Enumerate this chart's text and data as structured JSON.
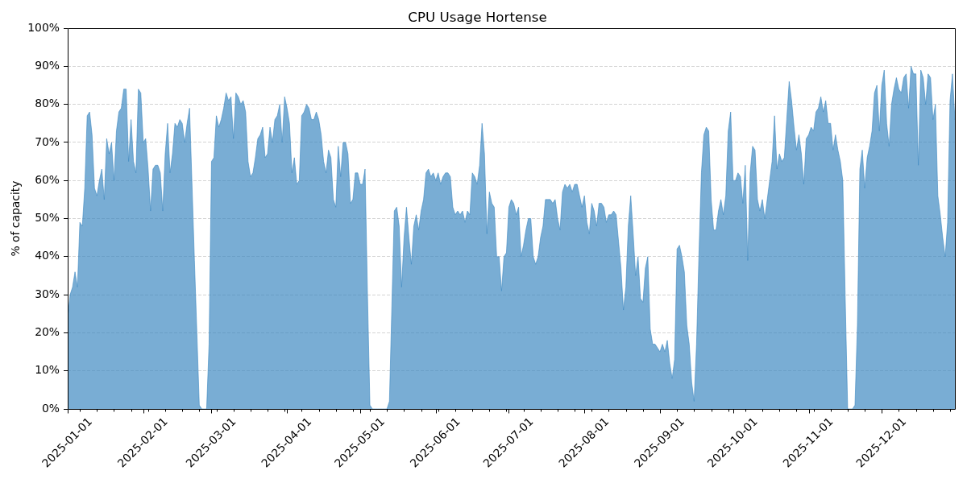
{
  "chart_data": {
    "type": "area",
    "title": "CPU Usage Hortense",
    "ylabel": "% of capacity",
    "color": "#3a86bf",
    "grid": "y",
    "xlim": [
      "2025-01-01",
      "2025-12-31"
    ],
    "xticks": [
      "2025-01-01",
      {
        "value": "2025-01-06",
        "label": null
      },
      {
        "value": "2025-01-13",
        "label": null
      },
      {
        "value": "2025-01-20",
        "label": null
      },
      {
        "value": "2025-01-27",
        "label": null
      },
      "2025-02-01",
      {
        "value": "2025-02-03",
        "label": null
      },
      {
        "value": "2025-02-10",
        "label": null
      },
      {
        "value": "2025-02-17",
        "label": null
      },
      {
        "value": "2025-02-24",
        "label": null
      },
      "2025-03-01",
      {
        "value": "2025-03-03",
        "label": null
      },
      {
        "value": "2025-03-10",
        "label": null
      },
      {
        "value": "2025-03-17",
        "label": null
      },
      {
        "value": "2025-03-24",
        "label": null
      },
      {
        "value": "2025-03-31",
        "label": null
      },
      "2025-04-01",
      {
        "value": "2025-04-07",
        "label": null
      },
      {
        "value": "2025-04-14",
        "label": null
      },
      {
        "value": "2025-04-21",
        "label": null
      },
      {
        "value": "2025-04-28",
        "label": null
      },
      "2025-05-01",
      {
        "value": "2025-05-05",
        "label": null
      },
      {
        "value": "2025-05-12",
        "label": null
      },
      {
        "value": "2025-05-19",
        "label": null
      },
      {
        "value": "2025-05-26",
        "label": null
      },
      "2025-06-01",
      {
        "value": "2025-06-02",
        "label": null
      },
      {
        "value": "2025-06-09",
        "label": null
      },
      {
        "value": "2025-06-16",
        "label": null
      },
      {
        "value": "2025-06-23",
        "label": null
      },
      {
        "value": "2025-06-30",
        "label": null
      },
      "2025-07-01",
      {
        "value": "2025-07-07",
        "label": null
      },
      {
        "value": "2025-07-14",
        "label": null
      },
      {
        "value": "2025-07-21",
        "label": null
      },
      {
        "value": "2025-07-28",
        "label": null
      },
      "2025-08-01",
      {
        "value": "2025-08-04",
        "label": null
      },
      {
        "value": "2025-08-11",
        "label": null
      },
      {
        "value": "2025-08-18",
        "label": null
      },
      {
        "value": "2025-08-25",
        "label": null
      },
      "2025-09-01",
      {
        "value": "2025-09-08",
        "label": null
      },
      {
        "value": "2025-09-15",
        "label": null
      },
      {
        "value": "2025-09-22",
        "label": null
      },
      {
        "value": "2025-09-29",
        "label": null
      },
      "2025-10-01",
      {
        "value": "2025-10-06",
        "label": null
      },
      {
        "value": "2025-10-13",
        "label": null
      },
      {
        "value": "2025-10-20",
        "label": null
      },
      {
        "value": "2025-10-27",
        "label": null
      },
      "2025-11-01",
      {
        "value": "2025-11-03",
        "label": null
      },
      {
        "value": "2025-11-10",
        "label": null
      },
      {
        "value": "2025-11-17",
        "label": null
      },
      {
        "value": "2025-11-24",
        "label": null
      },
      "2025-12-01",
      {
        "value": "2025-12-08",
        "label": null
      },
      {
        "value": "2025-12-15",
        "label": null
      },
      {
        "value": "2025-12-22",
        "label": null
      },
      {
        "value": "2025-12-29",
        "label": null
      }
    ],
    "ylim": [
      0,
      100
    ],
    "yticks": [
      {
        "value": 0,
        "label": "0%"
      },
      {
        "value": 10,
        "label": "10%"
      },
      {
        "value": 20,
        "label": "20%"
      },
      {
        "value": 30,
        "label": "30%"
      },
      {
        "value": 40,
        "label": "40%"
      },
      {
        "value": 50,
        "label": "50%"
      },
      {
        "value": 60,
        "label": "60%"
      },
      {
        "value": 70,
        "label": "70%"
      },
      {
        "value": 80,
        "label": "80%"
      },
      {
        "value": 90,
        "label": "90%"
      },
      {
        "value": 100,
        "label": "100%"
      }
    ],
    "x": [
      "2025-01-01",
      "2025-01-02",
      "2025-01-03",
      "2025-01-04",
      "2025-01-05",
      "2025-01-06",
      "2025-01-07",
      "2025-01-08",
      "2025-01-09",
      "2025-01-10",
      "2025-01-11",
      "2025-01-12",
      "2025-01-13",
      "2025-01-14",
      "2025-01-15",
      "2025-01-16",
      "2025-01-17",
      "2025-01-18",
      "2025-01-19",
      "2025-01-20",
      "2025-01-21",
      "2025-01-22",
      "2025-01-23",
      "2025-01-24",
      "2025-01-25",
      "2025-01-26",
      "2025-01-27",
      "2025-01-28",
      "2025-01-29",
      "2025-01-30",
      "2025-01-31",
      "2025-02-01",
      "2025-02-02",
      "2025-02-03",
      "2025-02-04",
      "2025-02-05",
      "2025-02-06",
      "2025-02-07",
      "2025-02-08",
      "2025-02-09",
      "2025-02-10",
      "2025-02-11",
      "2025-02-12",
      "2025-02-13",
      "2025-02-14",
      "2025-02-15",
      "2025-02-16",
      "2025-02-17",
      "2025-02-18",
      "2025-02-19",
      "2025-02-20",
      "2025-02-21",
      "2025-02-22",
      "2025-02-23",
      "2025-02-24",
      "2025-02-25",
      "2025-02-26",
      "2025-02-27",
      "2025-02-28",
      "2025-03-01",
      "2025-03-02",
      "2025-03-03",
      "2025-03-04",
      "2025-03-05",
      "2025-03-06",
      "2025-03-07",
      "2025-03-08",
      "2025-03-09",
      "2025-03-10",
      "2025-03-11",
      "2025-03-12",
      "2025-03-13",
      "2025-03-14",
      "2025-03-15",
      "2025-03-16",
      "2025-03-17",
      "2025-03-18",
      "2025-03-19",
      "2025-03-20",
      "2025-03-21",
      "2025-03-22",
      "2025-03-23",
      "2025-03-24",
      "2025-03-25",
      "2025-03-26",
      "2025-03-27",
      "2025-03-28",
      "2025-03-29",
      "2025-03-30",
      "2025-03-31",
      "2025-04-01",
      "2025-04-02",
      "2025-04-03",
      "2025-04-04",
      "2025-04-05",
      "2025-04-06",
      "2025-04-07",
      "2025-04-08",
      "2025-04-09",
      "2025-04-10",
      "2025-04-11",
      "2025-04-12",
      "2025-04-13",
      "2025-04-14",
      "2025-04-15",
      "2025-04-16",
      "2025-04-17",
      "2025-04-18",
      "2025-04-19",
      "2025-04-20",
      "2025-04-21",
      "2025-04-22",
      "2025-04-23",
      "2025-04-24",
      "2025-04-25",
      "2025-04-26",
      "2025-04-27",
      "2025-04-28",
      "2025-04-29",
      "2025-04-30",
      "2025-05-01",
      "2025-05-02",
      "2025-05-03",
      "2025-05-04",
      "2025-05-05",
      "2025-05-06",
      "2025-05-07",
      "2025-05-08",
      "2025-05-09",
      "2025-05-10",
      "2025-05-11",
      "2025-05-12",
      "2025-05-13",
      "2025-05-14",
      "2025-05-15",
      "2025-05-16",
      "2025-05-17",
      "2025-05-18",
      "2025-05-19",
      "2025-05-20",
      "2025-05-21",
      "2025-05-22",
      "2025-05-23",
      "2025-05-24",
      "2025-05-25",
      "2025-05-26",
      "2025-05-27",
      "2025-05-28",
      "2025-05-29",
      "2025-05-30",
      "2025-05-31",
      "2025-06-01",
      "2025-06-02",
      "2025-06-03",
      "2025-06-04",
      "2025-06-05",
      "2025-06-06",
      "2025-06-07",
      "2025-06-08",
      "2025-06-09",
      "2025-06-10",
      "2025-06-11",
      "2025-06-12",
      "2025-06-13",
      "2025-06-14",
      "2025-06-15",
      "2025-06-16",
      "2025-06-17",
      "2025-06-18",
      "2025-06-19",
      "2025-06-20",
      "2025-06-21",
      "2025-06-22",
      "2025-06-23",
      "2025-06-24",
      "2025-06-25",
      "2025-06-26",
      "2025-06-27",
      "2025-06-28",
      "2025-06-29",
      "2025-06-30",
      "2025-07-01",
      "2025-07-02",
      "2025-07-03",
      "2025-07-04",
      "2025-07-05",
      "2025-07-06",
      "2025-07-07",
      "2025-07-08",
      "2025-07-09",
      "2025-07-10",
      "2025-07-11",
      "2025-07-12",
      "2025-07-13",
      "2025-07-14",
      "2025-07-15",
      "2025-07-16",
      "2025-07-17",
      "2025-07-18",
      "2025-07-19",
      "2025-07-20",
      "2025-07-21",
      "2025-07-22",
      "2025-07-23",
      "2025-07-24",
      "2025-07-25",
      "2025-07-26",
      "2025-07-27",
      "2025-07-28",
      "2025-07-29",
      "2025-07-30",
      "2025-07-31",
      "2025-08-01",
      "2025-08-02",
      "2025-08-03",
      "2025-08-04",
      "2025-08-05",
      "2025-08-06",
      "2025-08-07",
      "2025-08-08",
      "2025-08-09",
      "2025-08-10",
      "2025-08-11",
      "2025-08-12",
      "2025-08-13",
      "2025-08-14",
      "2025-08-15",
      "2025-08-16",
      "2025-08-17",
      "2025-08-18",
      "2025-08-19",
      "2025-08-20",
      "2025-08-21",
      "2025-08-22",
      "2025-08-23",
      "2025-08-24",
      "2025-08-25",
      "2025-08-26",
      "2025-08-27",
      "2025-08-28",
      "2025-08-29",
      "2025-08-30",
      "2025-08-31",
      "2025-09-01",
      "2025-09-02",
      "2025-09-03",
      "2025-09-04",
      "2025-09-05",
      "2025-09-06",
      "2025-09-07",
      "2025-09-08",
      "2025-09-09",
      "2025-09-10",
      "2025-09-11",
      "2025-09-12",
      "2025-09-13",
      "2025-09-14",
      "2025-09-15",
      "2025-09-16",
      "2025-09-17",
      "2025-09-18",
      "2025-09-19",
      "2025-09-20",
      "2025-09-21",
      "2025-09-22",
      "2025-09-23",
      "2025-09-24",
      "2025-09-25",
      "2025-09-26",
      "2025-09-27",
      "2025-09-28",
      "2025-09-29",
      "2025-09-30",
      "2025-10-01",
      "2025-10-02",
      "2025-10-03",
      "2025-10-04",
      "2025-10-05",
      "2025-10-06",
      "2025-10-07",
      "2025-10-08",
      "2025-10-09",
      "2025-10-10",
      "2025-10-11",
      "2025-10-12",
      "2025-10-13",
      "2025-10-14",
      "2025-10-15",
      "2025-10-16",
      "2025-10-17",
      "2025-10-18",
      "2025-10-19",
      "2025-10-20",
      "2025-10-21",
      "2025-10-22",
      "2025-10-23",
      "2025-10-24",
      "2025-10-25",
      "2025-10-26",
      "2025-10-27",
      "2025-10-28",
      "2025-10-29",
      "2025-10-30",
      "2025-10-31",
      "2025-11-01",
      "2025-11-02",
      "2025-11-03",
      "2025-11-04",
      "2025-11-05",
      "2025-11-06",
      "2025-11-07",
      "2025-11-08",
      "2025-11-09",
      "2025-11-10",
      "2025-11-11",
      "2025-11-12",
      "2025-11-13",
      "2025-11-14",
      "2025-11-15",
      "2025-11-16",
      "2025-11-17",
      "2025-11-18",
      "2025-11-19",
      "2025-11-20",
      "2025-11-21",
      "2025-11-22",
      "2025-11-23",
      "2025-11-24",
      "2025-11-25",
      "2025-11-26",
      "2025-11-27",
      "2025-11-28",
      "2025-11-29",
      "2025-11-30",
      "2025-12-01",
      "2025-12-02",
      "2025-12-03",
      "2025-12-04",
      "2025-12-05",
      "2025-12-06",
      "2025-12-07",
      "2025-12-08",
      "2025-12-09",
      "2025-12-10",
      "2025-12-11",
      "2025-12-12",
      "2025-12-13",
      "2025-12-14",
      "2025-12-15",
      "2025-12-16",
      "2025-12-17",
      "2025-12-18",
      "2025-12-19",
      "2025-12-20",
      "2025-12-21",
      "2025-12-22",
      "2025-12-23",
      "2025-12-24",
      "2025-12-25",
      "2025-12-26",
      "2025-12-27",
      "2025-12-28",
      "2025-12-29",
      "2025-12-30",
      "2025-12-31"
    ],
    "values": [
      24,
      30,
      32,
      36,
      32,
      49,
      48,
      58,
      77,
      78,
      72,
      58,
      56,
      60,
      63,
      55,
      71,
      67,
      70,
      60,
      73,
      78,
      79,
      84,
      84,
      65,
      76,
      65,
      62,
      84,
      83,
      70,
      71,
      63,
      52,
      63,
      64,
      64,
      62,
      52,
      67,
      75,
      62,
      67,
      75,
      74,
      76,
      75,
      70,
      75,
      79,
      59,
      39,
      20,
      1,
      0,
      0,
      0,
      17,
      65,
      66,
      77,
      74,
      76,
      79,
      83,
      81,
      82,
      71,
      83,
      82,
      80,
      81,
      78,
      65,
      61,
      62,
      66,
      71,
      72,
      74,
      66,
      67,
      74,
      70,
      76,
      77,
      80,
      70,
      82,
      79,
      75,
      62,
      66,
      59,
      60,
      77,
      78,
      80,
      79,
      76,
      76,
      78,
      76,
      72,
      65,
      62,
      68,
      66,
      55,
      53,
      69,
      61,
      70,
      70,
      67,
      54,
      55,
      62,
      62,
      59,
      59,
      63,
      30,
      1,
      0,
      0,
      0,
      0,
      0,
      0,
      0,
      2,
      27,
      52,
      53,
      48,
      32,
      45,
      53,
      45,
      38,
      48,
      51,
      47,
      52,
      55,
      62,
      63,
      61,
      62,
      60,
      62,
      59,
      61,
      62,
      62,
      61,
      53,
      51,
      52,
      51,
      52,
      49,
      52,
      51,
      62,
      61,
      59,
      64,
      75,
      67,
      46,
      57,
      54,
      53,
      40,
      40,
      31,
      40,
      41,
      53,
      55,
      54,
      51,
      53,
      40,
      43,
      47,
      50,
      50,
      40,
      38,
      40,
      45,
      48,
      55,
      55,
      55,
      54,
      55,
      50,
      47,
      57,
      59,
      58,
      59,
      57,
      59,
      59,
      56,
      53,
      56,
      49,
      46,
      54,
      52,
      48,
      54,
      54,
      53,
      49,
      51,
      51,
      52,
      51,
      44,
      37,
      26,
      32,
      48,
      56,
      46,
      35,
      40,
      29,
      28,
      37,
      40,
      21,
      17,
      17,
      16,
      15,
      17,
      15,
      18,
      12,
      8,
      13,
      42,
      43,
      40,
      36,
      22,
      17,
      7,
      2,
      17,
      41,
      62,
      72,
      74,
      73,
      55,
      47,
      47,
      52,
      55,
      51,
      56,
      73,
      78,
      60,
      60,
      62,
      61,
      54,
      64,
      39,
      62,
      69,
      68,
      55,
      52,
      55,
      50,
      55,
      60,
      65,
      77,
      63,
      67,
      65,
      66,
      76,
      86,
      81,
      74,
      68,
      72,
      67,
      59,
      71,
      72,
      74,
      73,
      78,
      79,
      82,
      78,
      81,
      75,
      75,
      68,
      72,
      68,
      65,
      60,
      29,
      0,
      0,
      0,
      1,
      22,
      63,
      68,
      58,
      66,
      69,
      73,
      83,
      85,
      73,
      85,
      89,
      75,
      69,
      80,
      84,
      87,
      84,
      83,
      87,
      88,
      79,
      90,
      88,
      88,
      64,
      89,
      87,
      80,
      88,
      87,
      76,
      80,
      56,
      51,
      45,
      40,
      49,
      81,
      88,
      76
    ]
  }
}
